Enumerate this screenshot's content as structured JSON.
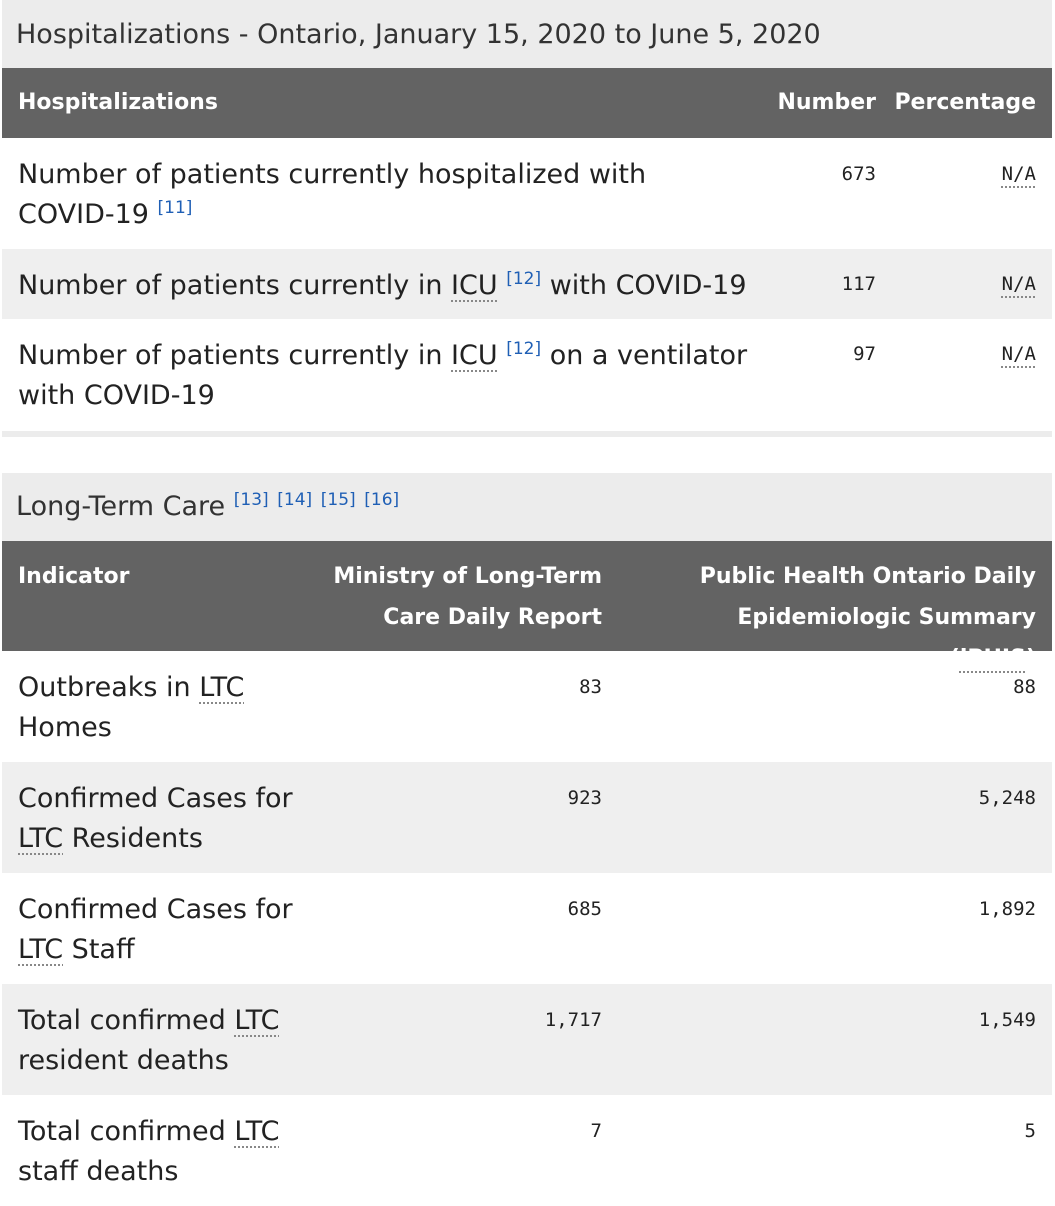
{
  "hospitalizations": {
    "caption": "Hospitalizations - Ontario, January 15, 2020 to June 5, 2020",
    "headers": {
      "label": "Hospitalizations",
      "number": "Number",
      "percentage": "Percentage"
    },
    "rows": [
      {
        "label_before": "Number of patients currently hospitalized with COVID-19",
        "ref": "[11]",
        "number": "673",
        "percentage": "N/A"
      },
      {
        "label_before": "Number of patients currently in ",
        "abbr": "ICU",
        "ref": "[12]",
        "label_after": " with COVID-19",
        "number": "117",
        "percentage": "N/A"
      },
      {
        "label_before": "Number of patients currently in ",
        "abbr": "ICU",
        "ref": "[12]",
        "label_after": " on a ventilator with COVID-19",
        "number": "97",
        "percentage": "N/A"
      }
    ]
  },
  "ltc": {
    "caption": "Long-Term Care",
    "refs": [
      "[13]",
      "[14]",
      "[15]",
      "[16]"
    ],
    "headers": {
      "indicator": "Indicator",
      "ministry": "Ministry of Long-Term Care Daily Report",
      "pho_before": "Public Health Ontario Daily Epidemiologic Summary (",
      "pho_abbr": "iPHIS",
      "pho_after": ")"
    },
    "rows": [
      {
        "pre": "Outbreaks in ",
        "abbr": "LTC",
        "post": " Homes",
        "ministry": "83",
        "pho": "88"
      },
      {
        "pre": "Confirmed Cases for ",
        "abbr": "LTC",
        "post": " Residents",
        "ministry": "923",
        "pho": "5,248"
      },
      {
        "pre": "Confirmed Cases for ",
        "abbr": "LTC",
        "post": " Staff",
        "ministry": "685",
        "pho": "1,892"
      },
      {
        "pre": "Total confirmed ",
        "abbr": "LTC",
        "post": " resident deaths",
        "ministry": "1,717",
        "pho": "1,549"
      },
      {
        "pre": "Total confirmed ",
        "abbr": "LTC",
        "post": " staff deaths",
        "ministry": "7",
        "pho": "5"
      }
    ]
  }
}
